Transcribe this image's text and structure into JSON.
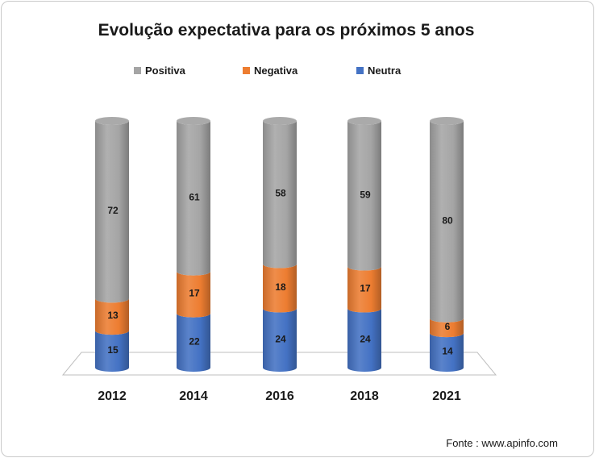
{
  "title": "Evolução expectativa para os próximos 5 anos",
  "source": "Fonte : www.apinfo.com",
  "colors": {
    "Positiva": "#a5a5a5",
    "Negativa": "#ed7d31",
    "Neutra": "#4472c4"
  },
  "chart_data": {
    "type": "bar",
    "stacked": true,
    "three_d": "cylinder",
    "title": "Evolução expectativa para os próximos 5 anos",
    "categories": [
      "2012",
      "2014",
      "2016",
      "2018",
      "2021"
    ],
    "series": [
      {
        "name": "Neutra",
        "values": [
          15,
          22,
          24,
          24,
          14
        ]
      },
      {
        "name": "Negativa",
        "values": [
          13,
          17,
          18,
          17,
          6
        ]
      },
      {
        "name": "Positiva",
        "values": [
          72,
          61,
          58,
          59,
          80
        ]
      }
    ],
    "legend": [
      "Positiva",
      "Negativa",
      "Neutra"
    ],
    "legend_position": "top",
    "ylim": [
      0,
      100
    ],
    "grid": false
  }
}
